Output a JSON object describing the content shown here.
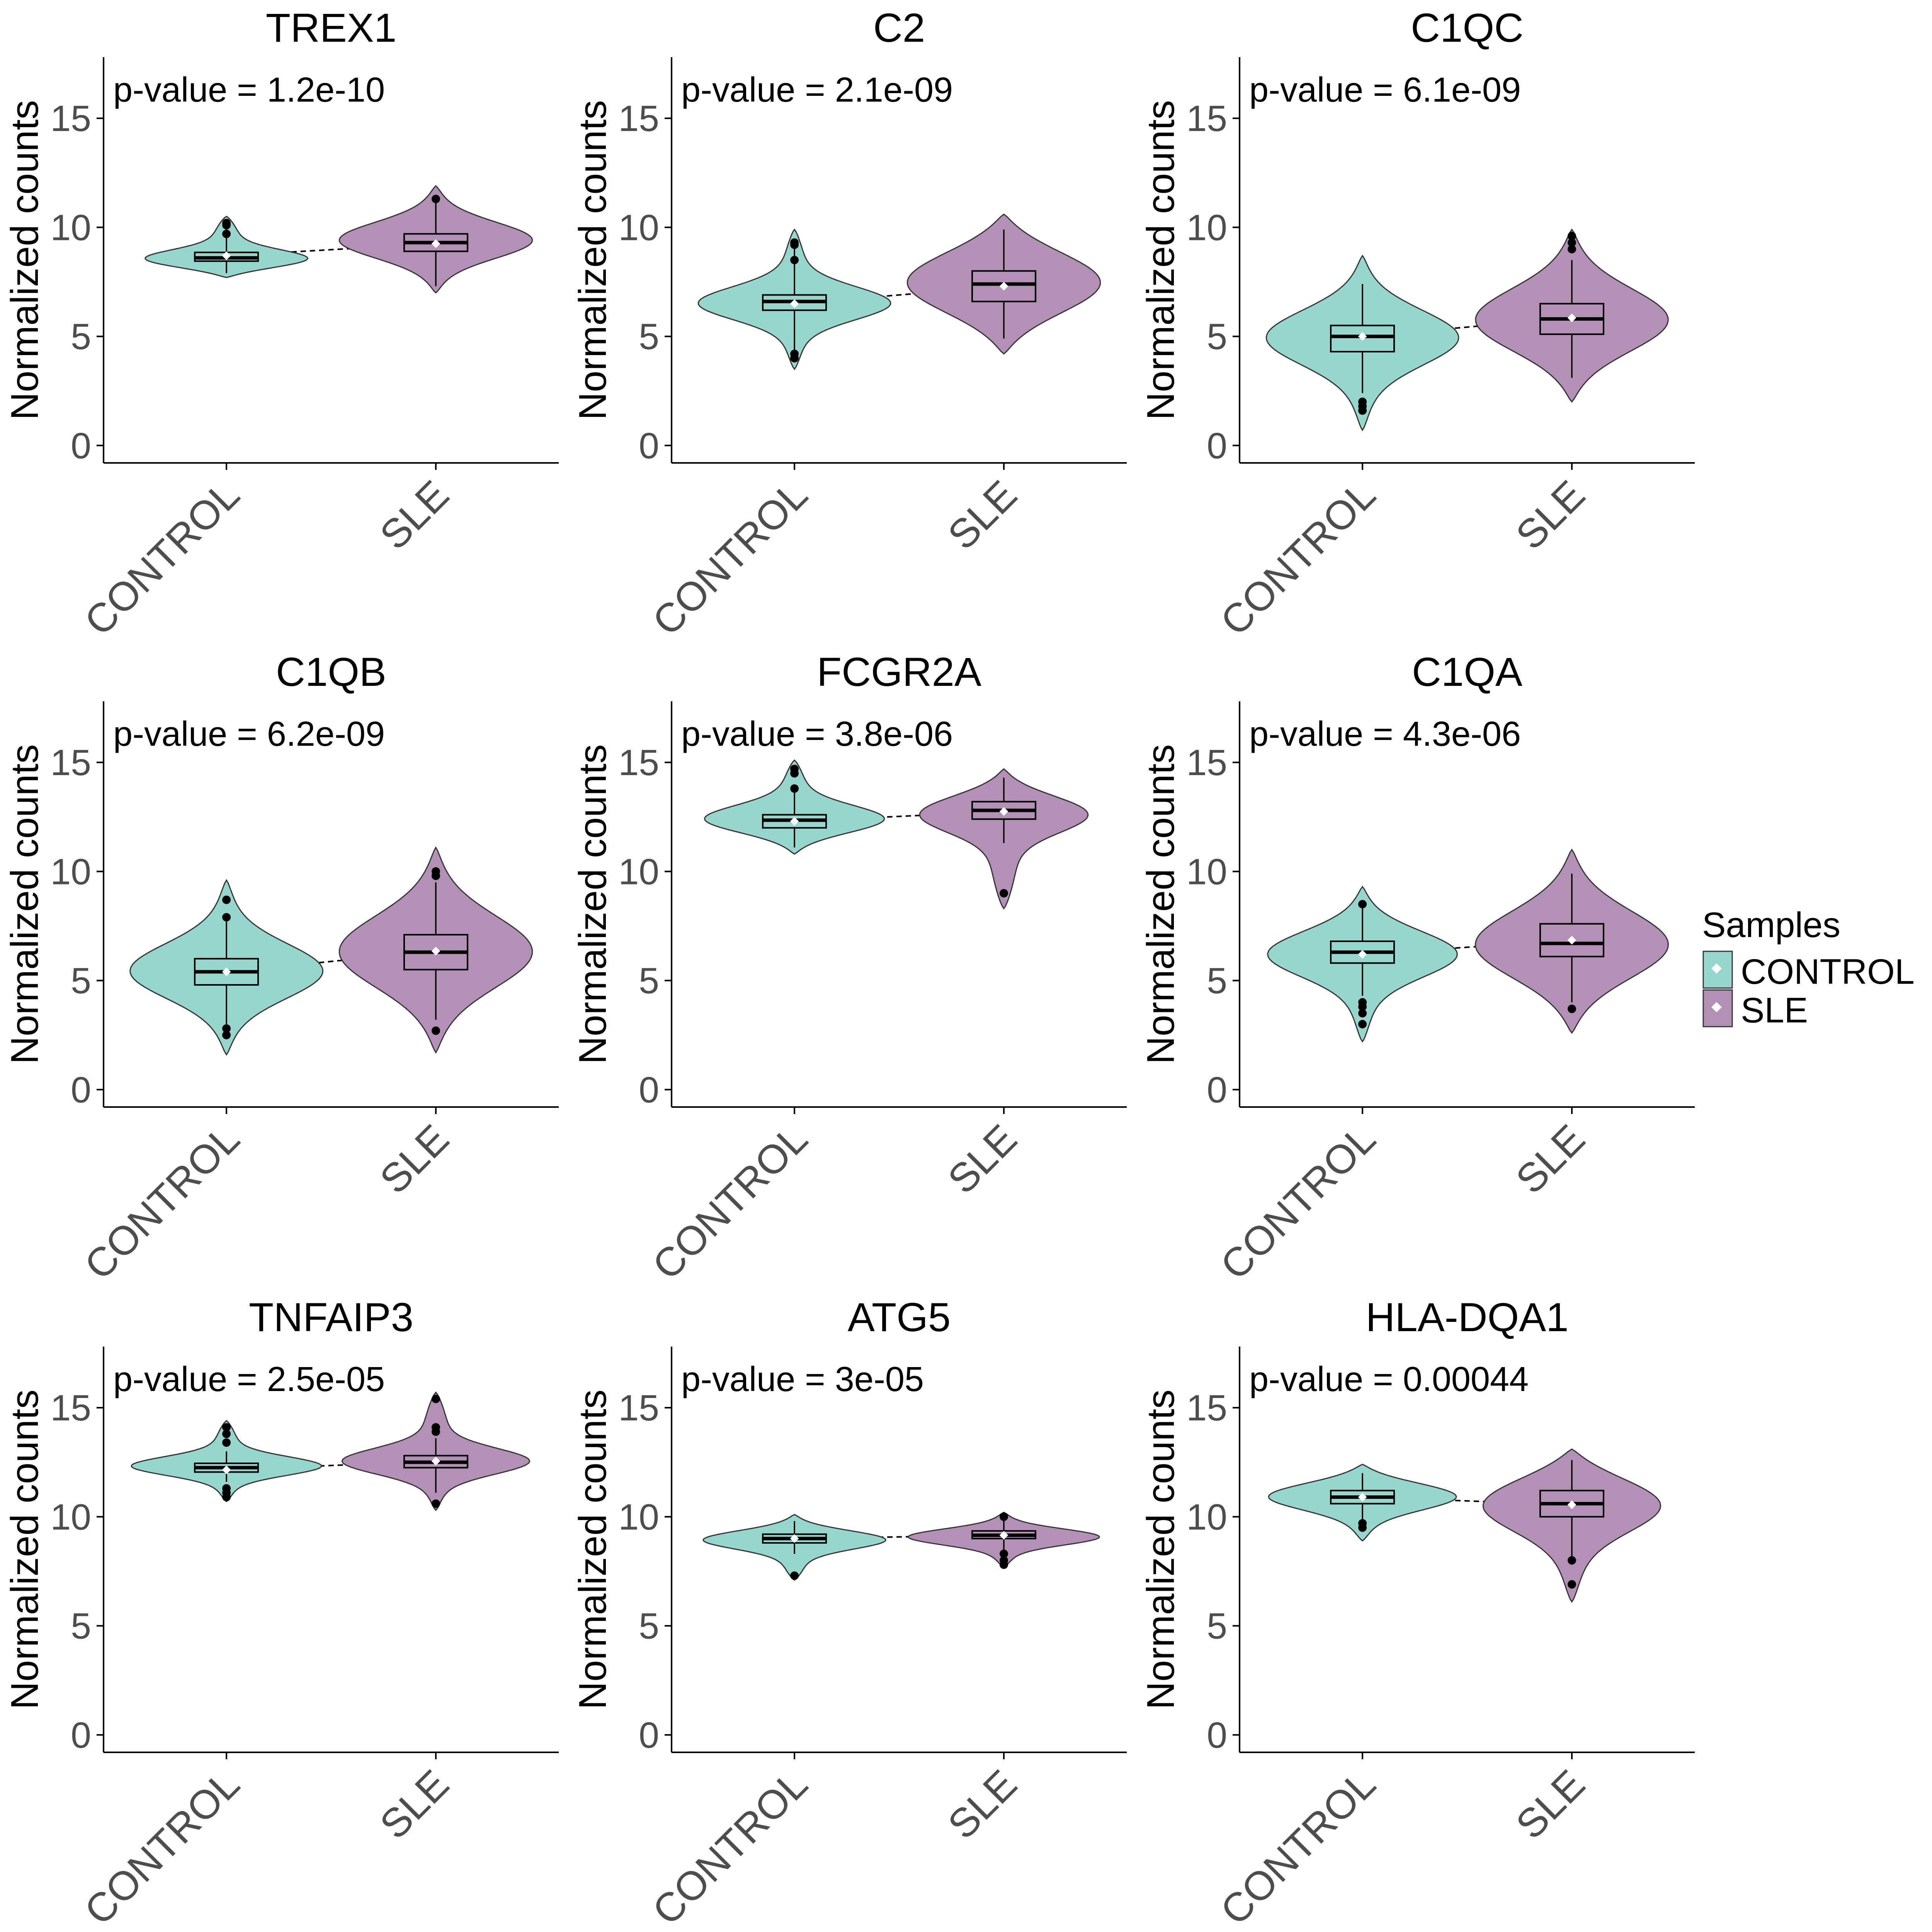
{
  "legend": {
    "title": "Samples",
    "items": [
      {
        "label": "CONTROL",
        "color": "#96d6cc"
      },
      {
        "label": "SLE",
        "color": "#b391b5"
      }
    ]
  },
  "colors": {
    "CONTROL": "#96d6cc",
    "SLE": "#b391b5",
    "axis": "#000000",
    "tick_label": "#4d4d4d"
  },
  "chart_data": [
    {
      "type": "violin",
      "title": "TREX1",
      "annotation": "p-value = 1.2e-10",
      "ylabel": "Normalized counts",
      "ylim": [
        -0.8,
        17.8
      ],
      "yticks": [
        0,
        5,
        10,
        15
      ],
      "categories": [
        "CONTROL",
        "SLE"
      ],
      "groups": [
        {
          "name": "CONTROL",
          "min": 7.7,
          "max": 10.5,
          "q1": 8.45,
          "median": 8.6,
          "q3": 8.85,
          "whisker_low": 7.9,
          "whisker_high": 10.3,
          "mean": 8.7,
          "density_center": 8.45,
          "outliers": [
            9.7,
            10.1,
            10.2
          ]
        },
        {
          "name": "SLE",
          "min": 7.0,
          "max": 11.9,
          "q1": 8.9,
          "median": 9.3,
          "q3": 9.7,
          "whisker_low": 7.3,
          "whisker_high": 11.2,
          "mean": 9.25,
          "density_center": 9.4,
          "outliers": [
            11.3
          ]
        }
      ]
    },
    {
      "type": "violin",
      "title": "C2",
      "annotation": "p-value = 2.1e-09",
      "ylabel": "Normalized counts",
      "ylim": [
        -0.8,
        17.8
      ],
      "yticks": [
        0,
        5,
        10,
        15
      ],
      "categories": [
        "CONTROL",
        "SLE"
      ],
      "groups": [
        {
          "name": "CONTROL",
          "min": 3.5,
          "max": 9.9,
          "q1": 6.2,
          "median": 6.6,
          "q3": 6.9,
          "whisker_low": 4.2,
          "whisker_high": 9.4,
          "mean": 6.5,
          "density_center": 6.5,
          "outliers": [
            4.0,
            4.2,
            8.5,
            9.2,
            9.3
          ]
        },
        {
          "name": "SLE",
          "min": 4.2,
          "max": 10.6,
          "q1": 6.6,
          "median": 7.4,
          "q3": 8.0,
          "whisker_low": 4.9,
          "whisker_high": 9.9,
          "mean": 7.3,
          "density_center": 7.5,
          "outliers": []
        }
      ]
    },
    {
      "type": "violin",
      "title": "C1QC",
      "annotation": "p-value = 6.1e-09",
      "ylabel": "Normalized counts",
      "ylim": [
        -0.8,
        17.8
      ],
      "yticks": [
        0,
        5,
        10,
        15
      ],
      "categories": [
        "CONTROL",
        "SLE"
      ],
      "groups": [
        {
          "name": "CONTROL",
          "min": 0.7,
          "max": 8.7,
          "q1": 4.3,
          "median": 5.0,
          "q3": 5.5,
          "whisker_low": 2.4,
          "whisker_high": 7.4,
          "mean": 5.0,
          "density_center": 5.0,
          "outliers": [
            1.6,
            1.8,
            2.0
          ]
        },
        {
          "name": "SLE",
          "min": 2.0,
          "max": 9.9,
          "q1": 5.1,
          "median": 5.8,
          "q3": 6.5,
          "whisker_low": 3.1,
          "whisker_high": 8.5,
          "mean": 5.85,
          "density_center": 5.7,
          "outliers": [
            9.0,
            9.3,
            9.6
          ]
        }
      ]
    },
    {
      "type": "violin",
      "title": "C1QB",
      "annotation": "p-value = 6.2e-09",
      "ylabel": "Normalized counts",
      "ylim": [
        -0.8,
        17.8
      ],
      "yticks": [
        0,
        5,
        10,
        15
      ],
      "categories": [
        "CONTROL",
        "SLE"
      ],
      "groups": [
        {
          "name": "CONTROL",
          "min": 1.6,
          "max": 9.6,
          "q1": 4.8,
          "median": 5.4,
          "q3": 6.0,
          "whisker_low": 3.0,
          "whisker_high": 7.7,
          "mean": 5.4,
          "density_center": 5.4,
          "outliers": [
            2.5,
            2.8,
            7.9,
            8.7
          ]
        },
        {
          "name": "SLE",
          "min": 1.7,
          "max": 11.1,
          "q1": 5.5,
          "median": 6.3,
          "q3": 7.1,
          "whisker_low": 3.2,
          "whisker_high": 9.5,
          "mean": 6.35,
          "density_center": 6.3,
          "outliers": [
            2.7,
            9.8,
            10.0
          ]
        }
      ]
    },
    {
      "type": "violin",
      "title": "FCGR2A",
      "annotation": "p-value = 3.8e-06",
      "ylabel": "Normalized counts",
      "ylim": [
        -0.8,
        17.8
      ],
      "yticks": [
        0,
        5,
        10,
        15
      ],
      "categories": [
        "CONTROL",
        "SLE"
      ],
      "groups": [
        {
          "name": "CONTROL",
          "min": 10.8,
          "max": 15.1,
          "q1": 12.0,
          "median": 12.35,
          "q3": 12.6,
          "whisker_low": 11.1,
          "whisker_high": 13.8,
          "mean": 12.3,
          "density_center": 12.3,
          "outliers": [
            13.8,
            14.5,
            14.7
          ]
        },
        {
          "name": "SLE",
          "min": 8.3,
          "max": 14.7,
          "q1": 12.4,
          "median": 12.8,
          "q3": 13.2,
          "whisker_low": 11.3,
          "whisker_high": 14.3,
          "mean": 12.75,
          "density_center": 12.8,
          "outliers": [
            9.0
          ]
        }
      ]
    },
    {
      "type": "violin",
      "title": "C1QA",
      "annotation": "p-value = 4.3e-06",
      "ylabel": "Normalized counts",
      "ylim": [
        -0.8,
        17.8
      ],
      "yticks": [
        0,
        5,
        10,
        15
      ],
      "categories": [
        "CONTROL",
        "SLE"
      ],
      "groups": [
        {
          "name": "CONTROL",
          "min": 2.2,
          "max": 9.3,
          "q1": 5.8,
          "median": 6.3,
          "q3": 6.8,
          "whisker_low": 4.3,
          "whisker_high": 8.3,
          "mean": 6.2,
          "density_center": 6.3,
          "outliers": [
            3.0,
            3.5,
            3.8,
            4.0,
            8.5
          ]
        },
        {
          "name": "SLE",
          "min": 2.6,
          "max": 11.0,
          "q1": 6.1,
          "median": 6.7,
          "q3": 7.6,
          "whisker_low": 4.0,
          "whisker_high": 9.9,
          "mean": 6.85,
          "density_center": 6.6,
          "outliers": [
            3.7
          ]
        }
      ]
    },
    {
      "type": "violin",
      "title": "TNFAIP3",
      "annotation": "p-value = 2.5e-05",
      "ylabel": "Normalized counts",
      "ylim": [
        -0.8,
        17.8
      ],
      "yticks": [
        0,
        5,
        10,
        15
      ],
      "categories": [
        "CONTROL",
        "SLE"
      ],
      "groups": [
        {
          "name": "CONTROL",
          "min": 10.7,
          "max": 14.4,
          "q1": 12.05,
          "median": 12.25,
          "q3": 12.45,
          "whisker_low": 11.6,
          "whisker_high": 13.0,
          "mean": 12.15,
          "density_center": 12.3,
          "outliers": [
            10.9,
            11.1,
            11.3,
            13.4,
            13.8,
            14.1
          ]
        },
        {
          "name": "SLE",
          "min": 10.3,
          "max": 15.7,
          "q1": 12.25,
          "median": 12.5,
          "q3": 12.8,
          "whisker_low": 11.1,
          "whisker_high": 13.6,
          "mean": 12.55,
          "density_center": 12.5,
          "outliers": [
            10.6,
            13.9,
            14.1,
            15.4
          ]
        }
      ]
    },
    {
      "type": "violin",
      "title": "ATG5",
      "annotation": "p-value = 3e-05",
      "ylabel": "Normalized counts",
      "ylim": [
        -0.8,
        17.8
      ],
      "yticks": [
        0,
        5,
        10,
        15
      ],
      "categories": [
        "CONTROL",
        "SLE"
      ],
      "groups": [
        {
          "name": "CONTROL",
          "min": 7.1,
          "max": 10.1,
          "q1": 8.8,
          "median": 9.0,
          "q3": 9.2,
          "whisker_low": 8.3,
          "whisker_high": 9.8,
          "mean": 9.0,
          "density_center": 9.0,
          "outliers": [
            7.3
          ]
        },
        {
          "name": "SLE",
          "min": 7.7,
          "max": 10.2,
          "q1": 9.0,
          "median": 9.15,
          "q3": 9.35,
          "whisker_low": 8.4,
          "whisker_high": 9.9,
          "mean": 9.15,
          "density_center": 9.1,
          "outliers": [
            7.8,
            8.0,
            8.3,
            10.0
          ]
        }
      ]
    },
    {
      "type": "violin",
      "title": "HLA-DQA1",
      "annotation": "p-value = 0.00044",
      "ylabel": "Normalized counts",
      "ylim": [
        -0.8,
        17.8
      ],
      "yticks": [
        0,
        5,
        10,
        15
      ],
      "categories": [
        "CONTROL",
        "SLE"
      ],
      "groups": [
        {
          "name": "CONTROL",
          "min": 8.9,
          "max": 12.4,
          "q1": 10.6,
          "median": 10.9,
          "q3": 11.2,
          "whisker_low": 9.8,
          "whisker_high": 12.0,
          "mean": 10.9,
          "density_center": 11.0,
          "outliers": [
            9.5,
            9.7
          ]
        },
        {
          "name": "SLE",
          "min": 6.1,
          "max": 13.1,
          "q1": 10.0,
          "median": 10.6,
          "q3": 11.2,
          "whisker_low": 8.1,
          "whisker_high": 12.6,
          "mean": 10.55,
          "density_center": 10.8,
          "outliers": [
            6.9,
            8.0
          ]
        }
      ]
    }
  ]
}
